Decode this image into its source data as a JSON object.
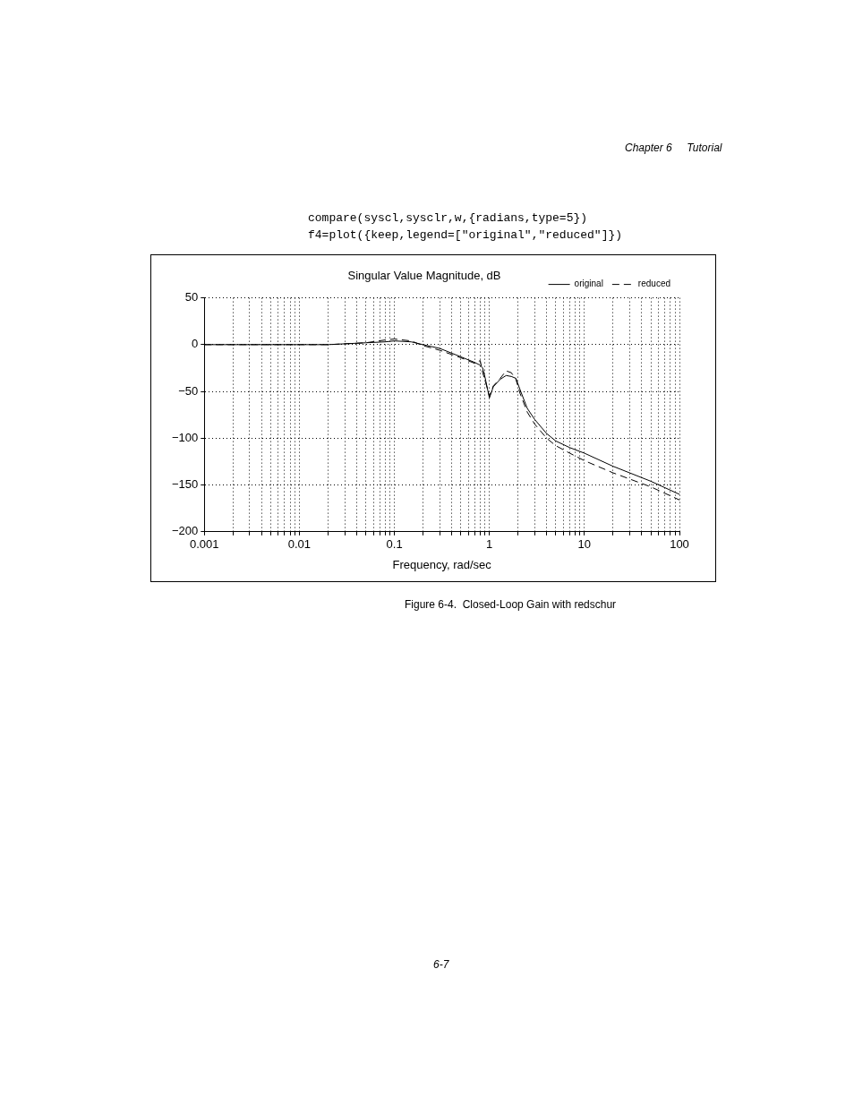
{
  "chart_data": {
    "type": "line",
    "title": "Singular Value Magnitude, dB",
    "xlabel": "Frequency, rad/sec",
    "annotations": [
      "Chapter 6     Tutorial",
      "compare(syscl,sysclr,w,{radians,type=5})",
      "f4=plot({keep,legend=[\"original\",\"reduced\"]})",
      "Figure 6-4.  Closed-Loop Gain with redschur",
      "6-7"
    ],
    "x": [
      0.001,
      0.003,
      0.005,
      0.01,
      0.02,
      0.05,
      0.08,
      0.1,
      0.15,
      0.2,
      0.3,
      0.5,
      0.7,
      0.8,
      0.85,
      0.9,
      1,
      1.1,
      1.3,
      1.5,
      1.7,
      1.9,
      2.1,
      2.5,
      3,
      4,
      5,
      7,
      10,
      20,
      50,
      100
    ],
    "series": [
      {
        "name": "original",
        "color": "#000000",
        "line_style": "solid",
        "values": [
          0,
          0,
          0,
          0,
          0,
          2,
          3,
          4,
          3,
          0,
          -4,
          -13,
          -19,
          -22,
          -25,
          -35,
          -57,
          -45,
          -37,
          -33,
          -34,
          -36,
          -48,
          -68,
          -80,
          -95,
          -103,
          -110,
          -116,
          -130,
          -146,
          -160
        ]
      },
      {
        "name": "reduced",
        "color": "#000000",
        "line_style": "dashed",
        "values": [
          0,
          0,
          0,
          0,
          0,
          2,
          5,
          6,
          4,
          -1,
          -6,
          -14,
          -20,
          -17,
          -30,
          -38,
          -55,
          -44,
          -36,
          -28,
          -30,
          -37,
          -52,
          -72,
          -85,
          -100,
          -108,
          -116,
          -124,
          -137,
          -152,
          -166
        ]
      }
    ],
    "log": "x",
    "xlim": [
      0.001,
      100
    ],
    "xticks": [
      0.001,
      {
        "value": 0.002,
        "label": null
      },
      {
        "value": 0.003,
        "label": null
      },
      {
        "value": 0.004,
        "label": null
      },
      {
        "value": 0.005,
        "label": null
      },
      {
        "value": 0.006,
        "label": null
      },
      {
        "value": 0.007,
        "label": null
      },
      {
        "value": 0.008,
        "label": null
      },
      {
        "value": 0.009,
        "label": null
      },
      0.01,
      {
        "value": 0.02,
        "label": null
      },
      {
        "value": 0.03,
        "label": null
      },
      {
        "value": 0.04,
        "label": null
      },
      {
        "value": 0.05,
        "label": null
      },
      {
        "value": 0.06,
        "label": null
      },
      {
        "value": 0.07,
        "label": null
      },
      {
        "value": 0.08,
        "label": null
      },
      {
        "value": 0.09,
        "label": null
      },
      0.1,
      {
        "value": 0.2,
        "label": null
      },
      {
        "value": 0.3,
        "label": null
      },
      {
        "value": 0.4,
        "label": null
      },
      {
        "value": 0.5,
        "label": null
      },
      {
        "value": 0.6,
        "label": null
      },
      {
        "value": 0.7,
        "label": null
      },
      {
        "value": 0.8,
        "label": null
      },
      {
        "value": 0.9,
        "label": null
      },
      1,
      {
        "value": 2,
        "label": null
      },
      {
        "value": 3,
        "label": null
      },
      {
        "value": 4,
        "label": null
      },
      {
        "value": 5,
        "label": null
      },
      {
        "value": 6,
        "label": null
      },
      {
        "value": 7,
        "label": null
      },
      {
        "value": 8,
        "label": null
      },
      {
        "value": 9,
        "label": null
      },
      10,
      {
        "value": 20,
        "label": null
      },
      {
        "value": 30,
        "label": null
      },
      {
        "value": 40,
        "label": null
      },
      {
        "value": 50,
        "label": null
      },
      {
        "value": 60,
        "label": null
      },
      {
        "value": 70,
        "label": null
      },
      {
        "value": 80,
        "label": null
      },
      {
        "value": 90,
        "label": null
      },
      100
    ],
    "ylim": [
      -200,
      50
    ],
    "yticks": [
      {
        "value": -200,
        "label": "−200"
      },
      {
        "value": -150,
        "label": "−150"
      },
      {
        "value": -100,
        "label": "−100"
      },
      {
        "value": -50,
        "label": "−50"
      },
      0,
      50
    ],
    "grid": true,
    "legend": "top right",
    "marker": "none"
  }
}
